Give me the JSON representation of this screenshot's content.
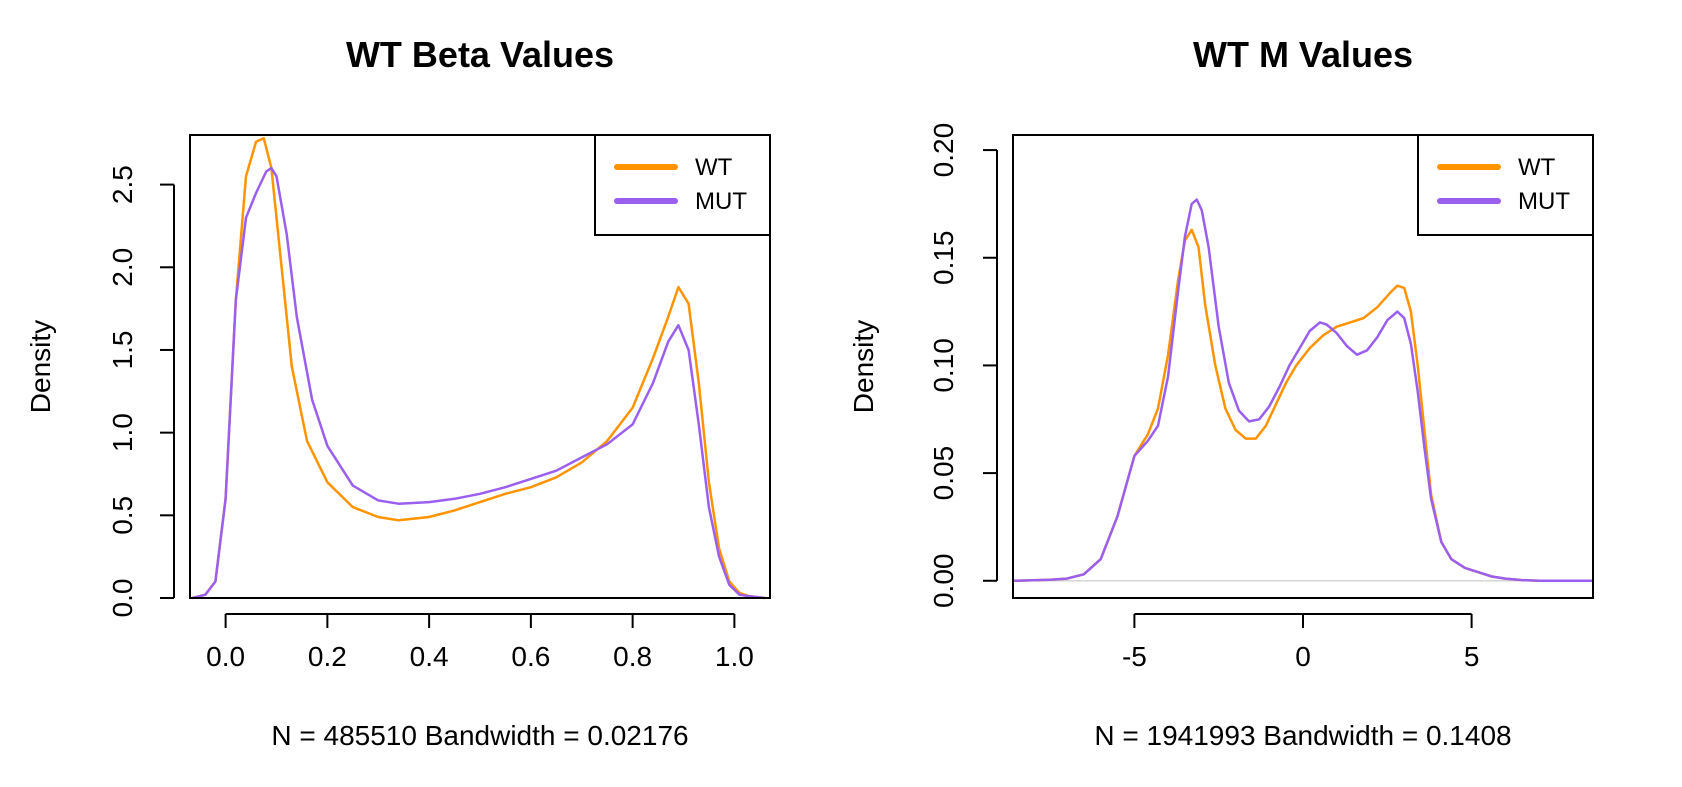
{
  "chart_data": [
    {
      "type": "line",
      "title": "WT Beta Values",
      "xlabel": "N = 485510   Bandwidth = 0.02176",
      "ylabel": "Density",
      "xlim": [
        -0.07,
        1.07
      ],
      "ylim": [
        0,
        2.8
      ],
      "x_ticks": [
        "0.0",
        "0.2",
        "0.4",
        "0.6",
        "0.8",
        "1.0"
      ],
      "y_ticks": [
        "0.0",
        "0.5",
        "1.0",
        "1.5",
        "2.0",
        "2.5"
      ],
      "x_tick_values": [
        0,
        0.2,
        0.4,
        0.6,
        0.8,
        1.0
      ],
      "y_tick_values": [
        0,
        0.5,
        1.0,
        1.5,
        2.0,
        2.5
      ],
      "grid": false,
      "zero_line": true,
      "legend": "top-right",
      "series": [
        {
          "name": "WT",
          "color": "#FF9400",
          "x": [
            -0.065,
            -0.04,
            -0.02,
            0.0,
            0.02,
            0.04,
            0.06,
            0.075,
            0.09,
            0.11,
            0.13,
            0.16,
            0.2,
            0.25,
            0.3,
            0.34,
            0.4,
            0.45,
            0.5,
            0.55,
            0.6,
            0.65,
            0.7,
            0.75,
            0.8,
            0.84,
            0.87,
            0.89,
            0.91,
            0.93,
            0.95,
            0.97,
            0.99,
            1.01,
            1.03,
            1.06
          ],
          "y": [
            0.0,
            0.02,
            0.1,
            0.6,
            1.8,
            2.55,
            2.76,
            2.78,
            2.6,
            2.0,
            1.4,
            0.95,
            0.7,
            0.55,
            0.49,
            0.47,
            0.49,
            0.53,
            0.58,
            0.63,
            0.67,
            0.73,
            0.82,
            0.95,
            1.15,
            1.45,
            1.7,
            1.88,
            1.78,
            1.3,
            0.7,
            0.3,
            0.1,
            0.03,
            0.01,
            0.0
          ]
        },
        {
          "name": "MUT",
          "color": "#9B5FF0",
          "x": [
            -0.065,
            -0.04,
            -0.02,
            0.0,
            0.02,
            0.04,
            0.06,
            0.08,
            0.09,
            0.1,
            0.12,
            0.14,
            0.17,
            0.2,
            0.25,
            0.3,
            0.34,
            0.4,
            0.45,
            0.5,
            0.55,
            0.6,
            0.65,
            0.7,
            0.75,
            0.8,
            0.84,
            0.87,
            0.89,
            0.91,
            0.93,
            0.95,
            0.97,
            0.99,
            1.01,
            1.03,
            1.06
          ],
          "y": [
            0.0,
            0.02,
            0.1,
            0.6,
            1.8,
            2.3,
            2.45,
            2.58,
            2.6,
            2.55,
            2.2,
            1.7,
            1.2,
            0.92,
            0.68,
            0.59,
            0.57,
            0.58,
            0.6,
            0.63,
            0.67,
            0.72,
            0.77,
            0.85,
            0.93,
            1.05,
            1.3,
            1.55,
            1.65,
            1.5,
            1.05,
            0.55,
            0.25,
            0.08,
            0.02,
            0.01,
            0.0
          ]
        }
      ]
    },
    {
      "type": "line",
      "title": "WT M Values",
      "xlabel": "N = 1941993   Bandwidth = 0.1408",
      "ylabel": "Density",
      "xlim": [
        -8.6,
        8.6
      ],
      "ylim": [
        -0.008,
        0.207
      ],
      "x_ticks": [
        "-5",
        "0",
        "5"
      ],
      "y_ticks": [
        "0.00",
        "0.05",
        "0.10",
        "0.15",
        "0.20"
      ],
      "x_tick_values": [
        -5,
        0,
        5
      ],
      "y_tick_values": [
        0,
        0.05,
        0.1,
        0.15,
        0.2
      ],
      "grid": false,
      "zero_line": true,
      "legend": "top-right",
      "series": [
        {
          "name": "WT",
          "color": "#FF9400",
          "x": [
            -8.6,
            -7.5,
            -7.0,
            -6.5,
            -6.0,
            -5.5,
            -5.0,
            -4.6,
            -4.3,
            -4.0,
            -3.7,
            -3.5,
            -3.3,
            -3.1,
            -2.9,
            -2.6,
            -2.3,
            -2.0,
            -1.7,
            -1.4,
            -1.1,
            -0.8,
            -0.5,
            -0.2,
            0.2,
            0.6,
            1.0,
            1.4,
            1.8,
            2.2,
            2.6,
            2.8,
            3.0,
            3.2,
            3.4,
            3.6,
            3.8,
            4.1,
            4.4,
            4.8,
            5.2,
            5.6,
            6.0,
            6.5,
            7.0,
            8.6
          ],
          "y": [
            0.0,
            0.0005,
            0.001,
            0.003,
            0.01,
            0.03,
            0.058,
            0.068,
            0.08,
            0.105,
            0.14,
            0.158,
            0.163,
            0.155,
            0.128,
            0.1,
            0.08,
            0.07,
            0.066,
            0.066,
            0.072,
            0.082,
            0.092,
            0.1,
            0.108,
            0.114,
            0.118,
            0.12,
            0.122,
            0.127,
            0.134,
            0.137,
            0.136,
            0.125,
            0.1,
            0.07,
            0.04,
            0.018,
            0.01,
            0.006,
            0.004,
            0.002,
            0.001,
            0.0003,
            0.0,
            0.0
          ]
        },
        {
          "name": "MUT",
          "color": "#9B5FF0",
          "x": [
            -8.6,
            -7.5,
            -7.0,
            -6.5,
            -6.0,
            -5.5,
            -5.0,
            -4.6,
            -4.3,
            -4.0,
            -3.7,
            -3.5,
            -3.3,
            -3.15,
            -3.0,
            -2.8,
            -2.5,
            -2.2,
            -1.9,
            -1.6,
            -1.3,
            -1.0,
            -0.7,
            -0.4,
            -0.1,
            0.2,
            0.5,
            0.7,
            1.0,
            1.3,
            1.6,
            1.9,
            2.2,
            2.5,
            2.8,
            3.0,
            3.2,
            3.4,
            3.6,
            3.8,
            4.1,
            4.4,
            4.8,
            5.2,
            5.6,
            6.0,
            6.5,
            7.0,
            8.6
          ],
          "y": [
            0.0,
            0.0005,
            0.001,
            0.003,
            0.01,
            0.03,
            0.058,
            0.065,
            0.072,
            0.095,
            0.135,
            0.16,
            0.175,
            0.177,
            0.172,
            0.155,
            0.118,
            0.092,
            0.079,
            0.074,
            0.075,
            0.081,
            0.09,
            0.1,
            0.108,
            0.116,
            0.12,
            0.119,
            0.115,
            0.109,
            0.105,
            0.107,
            0.113,
            0.121,
            0.125,
            0.122,
            0.11,
            0.088,
            0.062,
            0.038,
            0.018,
            0.01,
            0.006,
            0.004,
            0.002,
            0.001,
            0.0003,
            0.0,
            0.0
          ]
        }
      ]
    }
  ]
}
